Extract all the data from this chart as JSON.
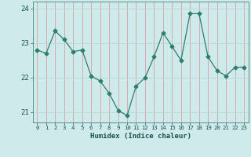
{
  "x": [
    0,
    1,
    2,
    3,
    4,
    5,
    6,
    7,
    8,
    9,
    10,
    11,
    12,
    13,
    14,
    15,
    16,
    17,
    18,
    19,
    20,
    21,
    22,
    23
  ],
  "y": [
    22.8,
    22.7,
    23.35,
    23.1,
    22.75,
    22.8,
    22.05,
    21.9,
    21.55,
    21.05,
    20.9,
    21.75,
    22.0,
    22.6,
    23.3,
    22.9,
    22.5,
    23.85,
    23.85,
    22.6,
    22.2,
    22.05,
    22.3,
    22.3
  ],
  "line_color": "#2e7d6e",
  "marker": "D",
  "marker_size": 2.5,
  "bg_color": "#ceeaea",
  "grid_color_v": "#d4a0a0",
  "grid_color_h": "#b8d8d8",
  "xlabel": "Humidex (Indice chaleur)",
  "ylim": [
    20.7,
    24.2
  ],
  "yticks": [
    21,
    22,
    23,
    24
  ],
  "xticks": [
    0,
    1,
    2,
    3,
    4,
    5,
    6,
    7,
    8,
    9,
    10,
    11,
    12,
    13,
    14,
    15,
    16,
    17,
    18,
    19,
    20,
    21,
    22,
    23
  ]
}
